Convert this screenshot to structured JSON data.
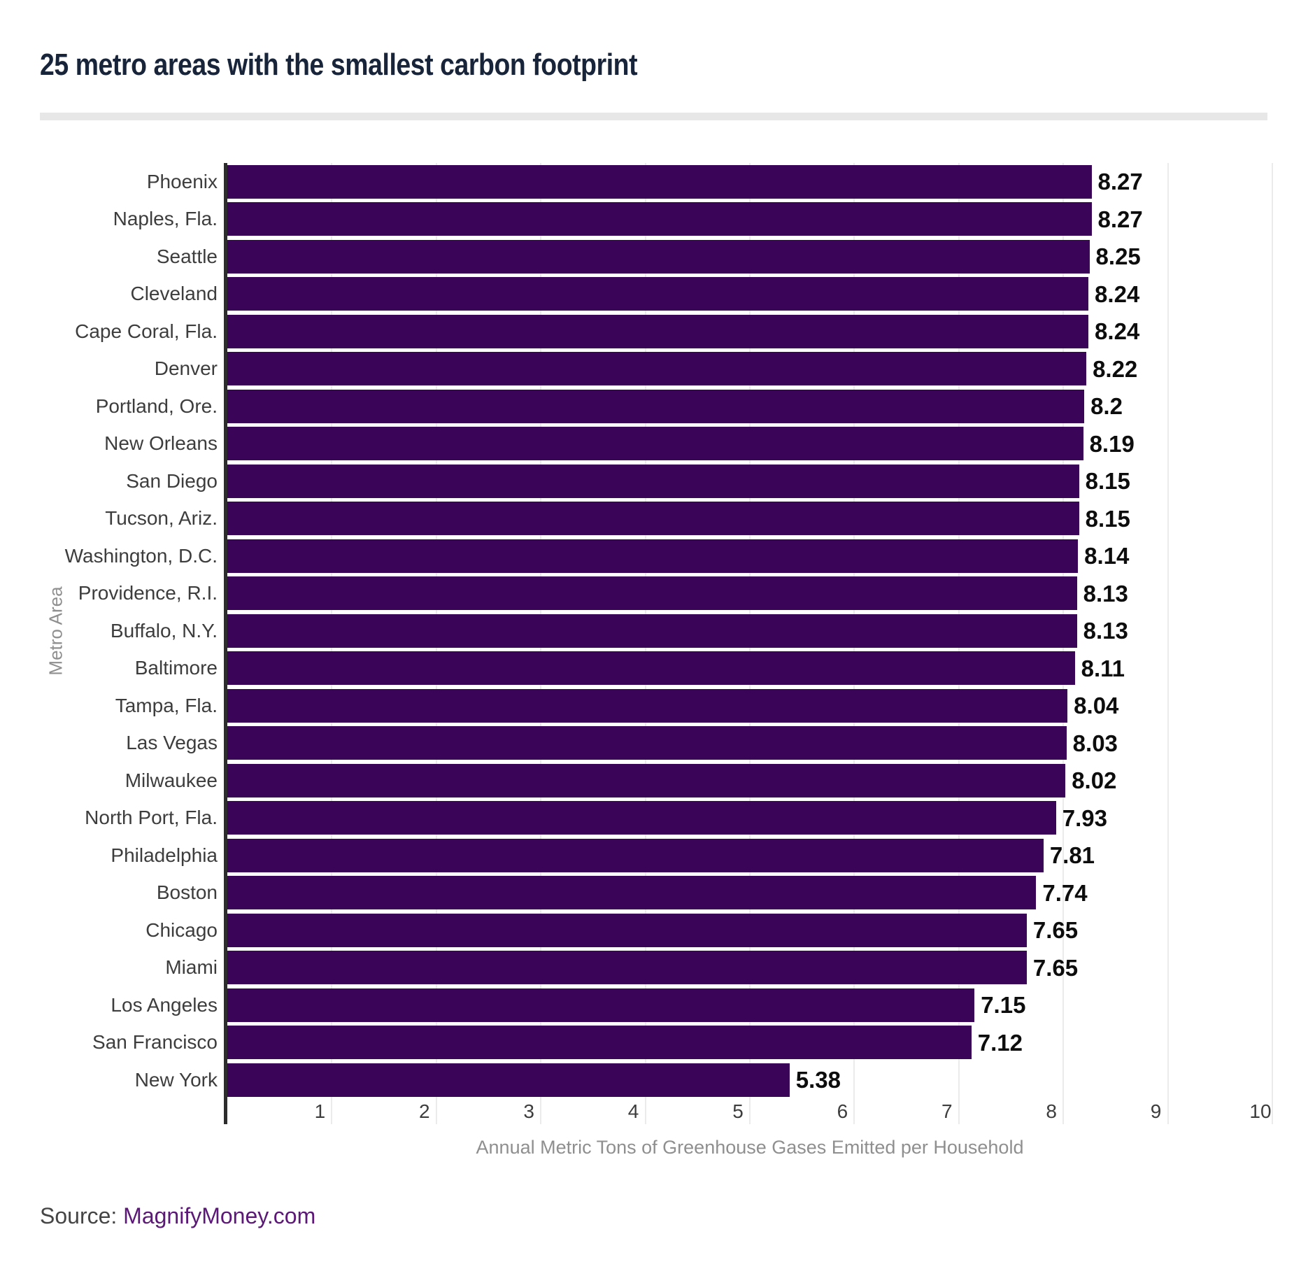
{
  "title": "25 metro areas with the smallest carbon footprint",
  "source": {
    "prefix": "Source: ",
    "link": "MagnifyMoney.com"
  },
  "colors": {
    "bar": "#3a0458",
    "title": "#172439",
    "axis_line": "#2d2d2d",
    "gridline": "#ebebeb",
    "category_label": "#3d3d3d",
    "value_label": "#0d0d0d",
    "axis_title": "#8f8f8f",
    "source_link": "#5b1877",
    "divider": "#e7e7e7"
  },
  "chart_data": {
    "type": "bar",
    "orientation": "horizontal",
    "title": "25 metro areas with the smallest carbon footprint",
    "xlabel": "Annual Metric Tons of Greenhouse Gases Emitted per Household",
    "ylabel": "Metro Area",
    "xlim": [
      0,
      10
    ],
    "xticks": [
      1,
      2,
      3,
      4,
      5,
      6,
      7,
      8,
      9,
      10
    ],
    "grid": true,
    "legend": false,
    "categories": [
      "Phoenix",
      "Naples, Fla.",
      "Seattle",
      "Cleveland",
      "Cape Coral, Fla.",
      "Denver",
      "Portland, Ore.",
      "New Orleans",
      "San Diego",
      "Tucson, Ariz.",
      "Washington, D.C.",
      "Providence, R.I.",
      "Buffalo, N.Y.",
      "Baltimore",
      "Tampa, Fla.",
      "Las Vegas",
      "Milwaukee",
      "North Port, Fla.",
      "Philadelphia",
      "Boston",
      "Chicago",
      "Miami",
      "Los Angeles",
      "San Francisco",
      "New York"
    ],
    "values": [
      8.27,
      8.27,
      8.25,
      8.24,
      8.24,
      8.22,
      8.2,
      8.19,
      8.15,
      8.15,
      8.14,
      8.13,
      8.13,
      8.11,
      8.04,
      8.03,
      8.02,
      7.93,
      7.81,
      7.74,
      7.65,
      7.65,
      7.15,
      7.12,
      5.38
    ]
  }
}
